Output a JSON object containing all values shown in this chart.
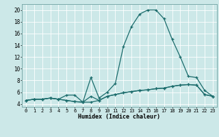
{
  "xlabel": "Humidex (Indice chaleur)",
  "background_color": "#cce8e8",
  "line_color": "#1a6b6b",
  "xlim": [
    -0.5,
    23.5
  ],
  "ylim": [
    3.5,
    21.0
  ],
  "yticks": [
    4,
    6,
    8,
    10,
    12,
    14,
    16,
    18,
    20
  ],
  "xtick_labels": [
    "0",
    "1",
    "2",
    "3",
    "4",
    "5",
    "6",
    "7",
    "8",
    "9",
    "10",
    "11",
    "12",
    "13",
    "14",
    "15",
    "16",
    "17",
    "18",
    "19",
    "20",
    "21",
    "22",
    "23"
  ],
  "series1_x": [
    0,
    1,
    2,
    3,
    4,
    5,
    6,
    7,
    8,
    9,
    10,
    11,
    12,
    13,
    14,
    15,
    16,
    17,
    18,
    19,
    20,
    21,
    22,
    23
  ],
  "series1_y": [
    4.6,
    4.8,
    4.8,
    5.0,
    4.8,
    4.6,
    4.4,
    4.3,
    4.3,
    4.6,
    5.3,
    5.6,
    5.9,
    6.1,
    6.3,
    6.4,
    6.6,
    6.7,
    7.0,
    7.2,
    7.3,
    7.2,
    5.6,
    5.3
  ],
  "series2_x": [
    0,
    1,
    2,
    3,
    4,
    5,
    6,
    7,
    8,
    9,
    10,
    11,
    12,
    13,
    14,
    15,
    16,
    17,
    18,
    19,
    20,
    21,
    22,
    23
  ],
  "series2_y": [
    4.6,
    4.8,
    4.8,
    5.0,
    4.8,
    5.5,
    5.5,
    4.3,
    5.3,
    4.6,
    5.3,
    5.6,
    5.9,
    6.1,
    6.3,
    6.4,
    6.6,
    6.7,
    7.0,
    7.2,
    7.3,
    7.2,
    5.6,
    5.3
  ],
  "series3_x": [
    0,
    1,
    2,
    3,
    4,
    5,
    6,
    7,
    8,
    9,
    10,
    11,
    12,
    13,
    14,
    15,
    16,
    17,
    18,
    19,
    20,
    21,
    22,
    23
  ],
  "series3_y": [
    4.6,
    4.8,
    4.8,
    5.0,
    4.8,
    4.6,
    4.4,
    4.3,
    8.5,
    5.0,
    6.0,
    7.5,
    13.8,
    17.2,
    19.3,
    20.0,
    20.0,
    18.5,
    15.0,
    12.0,
    8.7,
    8.5,
    6.3,
    5.3
  ]
}
